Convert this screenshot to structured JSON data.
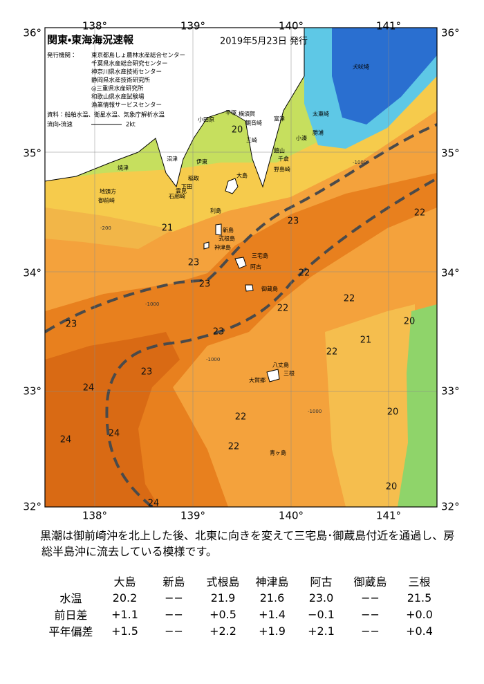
{
  "header": {
    "title": "関東・東海海況速報",
    "date": "2019年5月23日 発行",
    "issuer_label": "発行機関：",
    "issuers": [
      "東京都島しょ農林水産総合センター",
      "千葉県水産総合研究センター",
      "神奈川県水産技術センター",
      "静岡県水産技術研究所",
      "◎三重県水産研究所",
      "和歌山県水産試験場",
      "漁業情報サービスセンター"
    ],
    "sources": "資料：船舶水温、衛星水温、気象庁解析水温",
    "flow_label": "流向・流速",
    "flow_scale": "2kt"
  },
  "axes": {
    "longitude": [
      "138°",
      "139°",
      "140°",
      "141°"
    ],
    "latitude": [
      "36°",
      "35°",
      "34°",
      "33°",
      "32°"
    ]
  },
  "places": [
    "犬吠埼",
    "太東崎",
    "勝浦",
    "小湊",
    "館山",
    "千倉",
    "野島崎",
    "富津",
    "観音崎",
    "横須賀",
    "三崎",
    "平塚",
    "小田原",
    "伊東",
    "大島",
    "稲取",
    "下田",
    "石廊崎",
    "雲見",
    "沼津",
    "焼津",
    "御前崎",
    "地頭方",
    "利島",
    "新島",
    "式根島",
    "神津島",
    "三宅島",
    "阿古",
    "御蔵島",
    "八丈島",
    "三根",
    "大賀郷",
    "青ヶ島"
  ],
  "isotherms": [
    "20",
    "21",
    "22",
    "23",
    "23",
    "23",
    "23",
    "23",
    "23",
    "22",
    "22",
    "22",
    "22",
    "21",
    "20",
    "20",
    "20",
    "22",
    "22",
    "24",
    "24",
    "24",
    "24"
  ],
  "depths": [
    "-200",
    "-1000",
    "-1000",
    "-1000",
    "-1000"
  ],
  "description": "黒潮は御前崎沖を北上した後、北東に向きを変えて三宅島･御蔵島付近を通過し、房総半島沖に流去している模様です。",
  "table": {
    "columns": [
      "大島",
      "新島",
      "式根島",
      "神津島",
      "阿古",
      "御蔵島",
      "三根"
    ],
    "rows": [
      [
        "水温",
        "20.2",
        "−−",
        "21.9",
        "21.6",
        "23.0",
        "−−",
        "21.5"
      ],
      [
        "前日差",
        "+1.1",
        "−−",
        "+0.5",
        "+1.4",
        "−0.1",
        "−−",
        "+0.0"
      ],
      [
        "平年偏差",
        "+1.5",
        "−−",
        "+2.2",
        "+1.9",
        "+2.1",
        "−−",
        "+0.4"
      ]
    ]
  }
}
